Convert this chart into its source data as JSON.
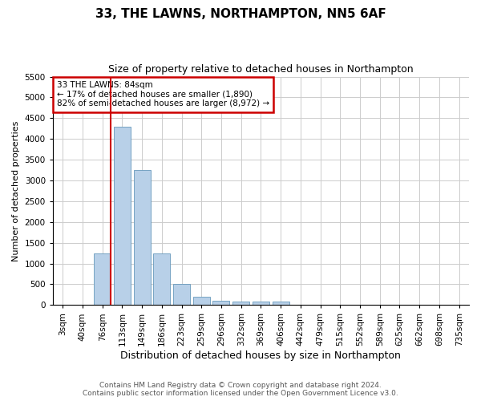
{
  "title": "33, THE LAWNS, NORTHAMPTON, NN5 6AF",
  "subtitle": "Size of property relative to detached houses in Northampton",
  "xlabel": "Distribution of detached houses by size in Northampton",
  "ylabel": "Number of detached properties",
  "categories": [
    "3sqm",
    "40sqm",
    "76sqm",
    "113sqm",
    "149sqm",
    "186sqm",
    "223sqm",
    "259sqm",
    "296sqm",
    "332sqm",
    "369sqm",
    "406sqm",
    "442sqm",
    "479sqm",
    "515sqm",
    "552sqm",
    "589sqm",
    "625sqm",
    "662sqm",
    "698sqm",
    "735sqm"
  ],
  "values": [
    0,
    0,
    1250,
    4300,
    3250,
    1250,
    500,
    200,
    100,
    75,
    75,
    75,
    0,
    0,
    0,
    0,
    0,
    0,
    0,
    0,
    0
  ],
  "bar_color": "#b8d0e8",
  "bar_edge_color": "#6699bb",
  "grid_color": "#cccccc",
  "annotation_line_color": "#cc0000",
  "annotation_text_line1": "33 THE LAWNS: 84sqm",
  "annotation_text_line2": "← 17% of detached houses are smaller (1,890)",
  "annotation_text_line3": "82% of semi-detached houses are larger (8,972) →",
  "annotation_box_color": "#cc0000",
  "ylim": [
    0,
    5500
  ],
  "yticks": [
    0,
    500,
    1000,
    1500,
    2000,
    2500,
    3000,
    3500,
    4000,
    4500,
    5000,
    5500
  ],
  "footnote1": "Contains HM Land Registry data © Crown copyright and database right 2024.",
  "footnote2": "Contains public sector information licensed under the Open Government Licence v3.0.",
  "bg_color": "#ffffff",
  "plot_bg_color": "#ffffff",
  "title_fontsize": 11,
  "subtitle_fontsize": 9,
  "ylabel_fontsize": 8,
  "xlabel_fontsize": 9,
  "tick_fontsize": 7.5,
  "footnote_fontsize": 6.5
}
